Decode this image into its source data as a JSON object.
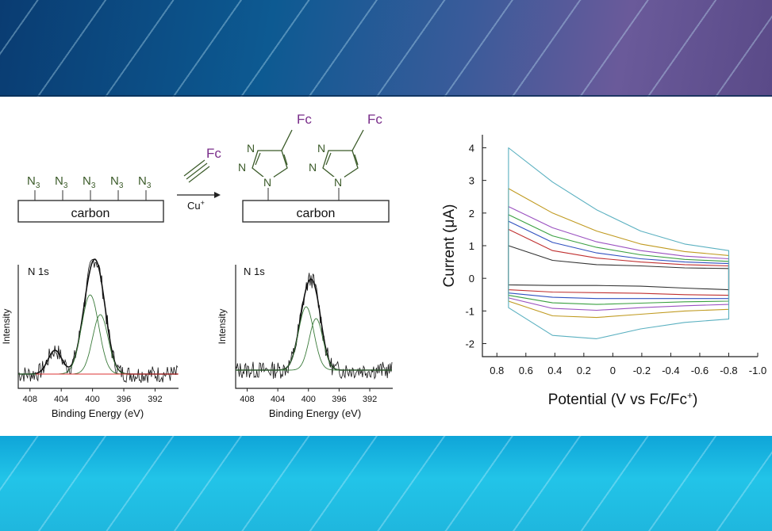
{
  "scheme": {
    "reagent": "Fc",
    "catalyst": "Cu",
    "catalyst_sup": "+",
    "substrate_label": "carbon",
    "azide_atom": "N",
    "azide_sub": "3",
    "triazole_atom": "N",
    "triazole_substituent": "Fc",
    "colors": {
      "fc": "#7a2e8a",
      "bond": "#3a5a28",
      "line": "#222222"
    }
  },
  "xps_left": {
    "title": "N 1s",
    "ylabel": "Intensity",
    "xlabel": "Binding Energy (eV)",
    "ticks": [
      "408",
      "404",
      "400",
      "396",
      "392"
    ]
  },
  "xps_right": {
    "title": "N 1s",
    "ylabel": "Intensity",
    "xlabel": "Binding Energy (eV)",
    "ticks": [
      "408",
      "404",
      "400",
      "396",
      "392"
    ]
  },
  "chart_data": {
    "type": "line",
    "title": "",
    "xlabel": "Potential (V vs Fc/Fc",
    "xlabel_sup": "+",
    "xlabel_end": ")",
    "ylabel": "Current (μA)",
    "xlim": [
      0.9,
      -1.0
    ],
    "ylim": [
      -2.4,
      4.4
    ],
    "xticks": [
      "0.8",
      "0.6",
      "0.4",
      "0.2",
      "0",
      "-0.2",
      "-0.4",
      "-0.6",
      "-0.8",
      "-1.0"
    ],
    "yticks": [
      "4",
      "3",
      "2",
      "1",
      "0",
      "-1",
      "-2"
    ],
    "x_range_scan": [
      0.72,
      -0.8
    ],
    "series": [
      {
        "color": "#333333",
        "anodic": [
          1.0,
          0.55,
          0.42,
          0.38,
          0.32,
          0.3
        ],
        "cathodic": [
          -0.2,
          -0.22,
          -0.22,
          -0.24,
          -0.3,
          -0.35
        ]
      },
      {
        "color": "#c03030",
        "anodic": [
          1.5,
          0.85,
          0.62,
          0.5,
          0.42,
          0.38
        ],
        "cathodic": [
          -0.35,
          -0.42,
          -0.44,
          -0.46,
          -0.5,
          -0.52
        ]
      },
      {
        "color": "#3050c0",
        "anodic": [
          1.75,
          1.1,
          0.78,
          0.6,
          0.5,
          0.45
        ],
        "cathodic": [
          -0.45,
          -0.58,
          -0.62,
          -0.62,
          -0.62,
          -0.62
        ]
      },
      {
        "color": "#3aa040",
        "anodic": [
          1.95,
          1.3,
          0.95,
          0.72,
          0.58,
          0.52
        ],
        "cathodic": [
          -0.52,
          -0.75,
          -0.8,
          -0.76,
          -0.72,
          -0.7
        ]
      },
      {
        "color": "#9a50c0",
        "anodic": [
          2.2,
          1.55,
          1.12,
          0.85,
          0.68,
          0.6
        ],
        "cathodic": [
          -0.6,
          -0.92,
          -0.98,
          -0.9,
          -0.84,
          -0.8
        ]
      },
      {
        "color": "#c09a20",
        "anodic": [
          2.75,
          2.0,
          1.45,
          1.05,
          0.82,
          0.7
        ],
        "cathodic": [
          -0.7,
          -1.15,
          -1.2,
          -1.1,
          -1.0,
          -0.95
        ]
      },
      {
        "color": "#5ab0c0",
        "anodic": [
          4.0,
          2.95,
          2.1,
          1.45,
          1.05,
          0.85
        ],
        "cathodic": [
          -0.9,
          -1.75,
          -1.85,
          -1.55,
          -1.35,
          -1.25
        ]
      }
    ]
  }
}
